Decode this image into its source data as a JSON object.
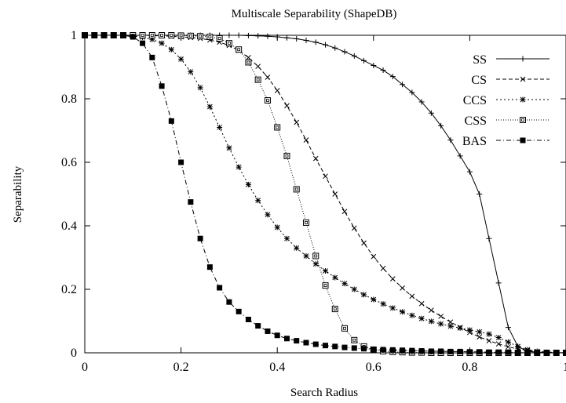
{
  "chart_data": {
    "type": "line",
    "title": "Multiscale Separability (ShapeDB)",
    "xlabel": "Search Radius",
    "ylabel": "Separability",
    "xlim": [
      0,
      1
    ],
    "ylim": [
      0,
      1
    ],
    "x_ticks": [
      "0",
      "0.2",
      "0.4",
      "0.6",
      "0.8",
      "1"
    ],
    "y_ticks": [
      "0",
      "0.2",
      "0.4",
      "0.6",
      "0.8",
      "1"
    ],
    "grid": false,
    "legend_position": "top-right",
    "x": [
      0.0,
      0.02,
      0.04,
      0.06,
      0.08,
      0.1,
      0.12,
      0.14,
      0.16,
      0.18,
      0.2,
      0.22,
      0.24,
      0.26,
      0.28,
      0.3,
      0.32,
      0.34,
      0.36,
      0.38,
      0.4,
      0.42,
      0.44,
      0.46,
      0.48,
      0.5,
      0.52,
      0.54,
      0.56,
      0.58,
      0.6,
      0.62,
      0.64,
      0.66,
      0.68,
      0.7,
      0.72,
      0.74,
      0.76,
      0.78,
      0.8,
      0.82,
      0.84,
      0.86,
      0.88,
      0.9,
      0.92,
      0.94,
      0.96,
      0.98,
      1.0
    ],
    "series": [
      {
        "name": "SS",
        "marker": "plus",
        "dash": "",
        "values": [
          1.0,
          1.0,
          1.0,
          1.0,
          1.0,
          1.0,
          1.0,
          1.0,
          1.0,
          1.0,
          1.0,
          1.0,
          1.0,
          1.0,
          1.0,
          1.0,
          1.0,
          0.999,
          0.998,
          0.997,
          0.995,
          0.992,
          0.989,
          0.984,
          0.978,
          0.97,
          0.96,
          0.948,
          0.935,
          0.92,
          0.905,
          0.89,
          0.87,
          0.845,
          0.82,
          0.79,
          0.755,
          0.715,
          0.67,
          0.62,
          0.57,
          0.5,
          0.36,
          0.22,
          0.08,
          0.02,
          0.005,
          0.002,
          0.001,
          0.0,
          0.0
        ]
      },
      {
        "name": "CS",
        "marker": "cross",
        "dash": "5,3",
        "values": [
          1.0,
          1.0,
          1.0,
          1.0,
          1.0,
          1.0,
          1.0,
          0.999,
          0.998,
          0.997,
          0.995,
          0.993,
          0.99,
          0.985,
          0.978,
          0.968,
          0.952,
          0.93,
          0.902,
          0.868,
          0.826,
          0.778,
          0.726,
          0.67,
          0.612,
          0.556,
          0.5,
          0.445,
          0.393,
          0.346,
          0.303,
          0.266,
          0.233,
          0.204,
          0.178,
          0.155,
          0.134,
          0.115,
          0.097,
          0.08,
          0.064,
          0.05,
          0.038,
          0.028,
          0.019,
          0.012,
          0.007,
          0.004,
          0.002,
          0.001,
          0.0
        ]
      },
      {
        "name": "CCS",
        "marker": "star",
        "dash": "2,3",
        "values": [
          1.0,
          1.0,
          1.0,
          1.0,
          1.0,
          0.998,
          0.994,
          0.987,
          0.975,
          0.955,
          0.925,
          0.885,
          0.835,
          0.775,
          0.71,
          0.645,
          0.585,
          0.53,
          0.48,
          0.435,
          0.395,
          0.36,
          0.33,
          0.305,
          0.28,
          0.258,
          0.237,
          0.218,
          0.2,
          0.183,
          0.168,
          0.154,
          0.141,
          0.129,
          0.118,
          0.108,
          0.099,
          0.091,
          0.084,
          0.078,
          0.072,
          0.066,
          0.059,
          0.048,
          0.034,
          0.02,
          0.01,
          0.005,
          0.002,
          0.001,
          0.0
        ]
      },
      {
        "name": "CSS",
        "marker": "boxopen",
        "dash": "1,2",
        "values": [
          1.0,
          1.0,
          1.0,
          1.0,
          1.0,
          1.0,
          1.0,
          1.0,
          1.0,
          1.0,
          0.999,
          0.998,
          0.997,
          0.995,
          0.99,
          0.975,
          0.955,
          0.915,
          0.86,
          0.795,
          0.71,
          0.62,
          0.515,
          0.41,
          0.305,
          0.212,
          0.138,
          0.077,
          0.04,
          0.02,
          0.01,
          0.005,
          0.003,
          0.002,
          0.001,
          0.001,
          0.0,
          0.0,
          0.0,
          0.0,
          0.0,
          0.0,
          0.0,
          0.0,
          0.0,
          0.0,
          0.0,
          0.0,
          0.0,
          0.0,
          0.0
        ]
      },
      {
        "name": "BAS",
        "marker": "boxfill",
        "dash": "6,3,1,3",
        "values": [
          1.0,
          1.0,
          1.0,
          1.0,
          1.0,
          0.995,
          0.975,
          0.93,
          0.84,
          0.73,
          0.6,
          0.475,
          0.36,
          0.27,
          0.205,
          0.16,
          0.13,
          0.105,
          0.085,
          0.068,
          0.055,
          0.045,
          0.038,
          0.032,
          0.027,
          0.023,
          0.02,
          0.017,
          0.015,
          0.013,
          0.011,
          0.01,
          0.009,
          0.008,
          0.007,
          0.006,
          0.005,
          0.005,
          0.004,
          0.004,
          0.003,
          0.003,
          0.002,
          0.002,
          0.002,
          0.001,
          0.001,
          0.001,
          0.001,
          0.0,
          0.0
        ]
      }
    ]
  }
}
